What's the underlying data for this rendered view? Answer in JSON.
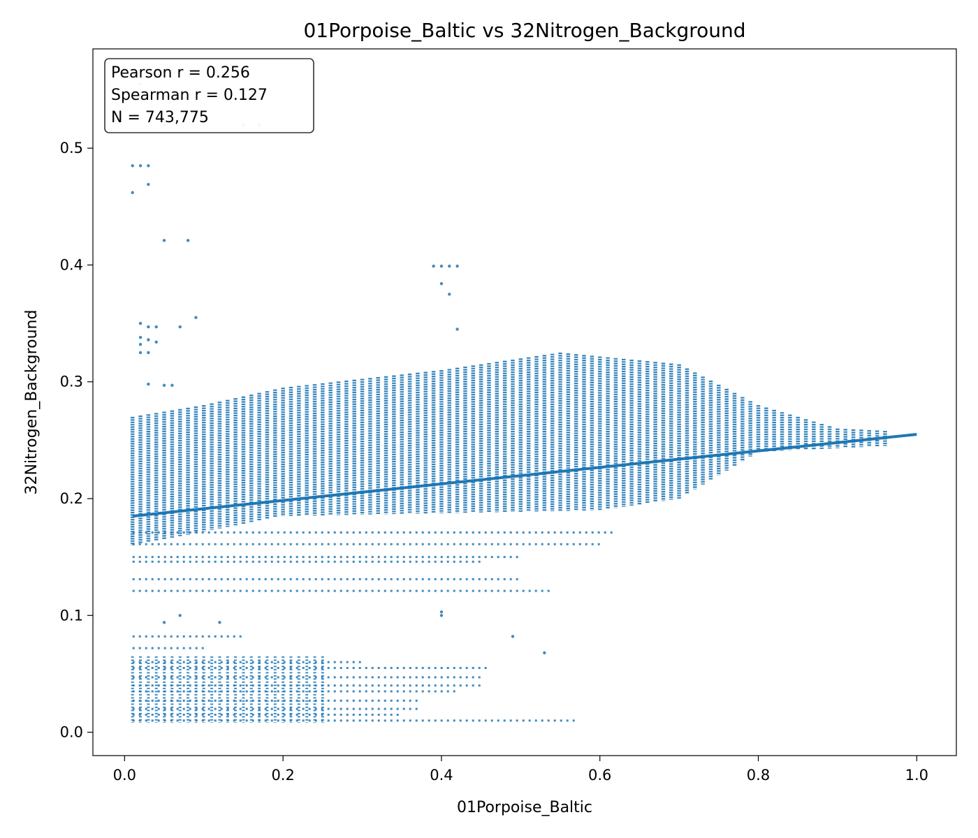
{
  "chart_data": {
    "type": "scatter",
    "title": "01Porpoise_Baltic vs 32Nitrogen_Background",
    "xlabel": "01Porpoise_Baltic",
    "ylabel": "32Nitrogen_Background",
    "xlim": [
      -0.04,
      1.05
    ],
    "ylim": [
      -0.02,
      0.585
    ],
    "x_ticks": [
      0.0,
      0.2,
      0.4,
      0.6,
      0.8,
      1.0
    ],
    "x_tick_labels": [
      "0.0",
      "0.2",
      "0.4",
      "0.6",
      "0.8",
      "1.0"
    ],
    "y_ticks": [
      0.0,
      0.1,
      0.2,
      0.3,
      0.4,
      0.5
    ],
    "y_tick_labels": [
      "0.0",
      "0.1",
      "0.2",
      "0.3",
      "0.4",
      "0.5"
    ],
    "grid": false,
    "point_color": "#1f77b4",
    "stats": {
      "position": "top-left",
      "lines": [
        "Pearson r = 0.256",
        "Spearman r = 0.127",
        "N = 743,775"
      ]
    },
    "regression_line": {
      "x": [
        0.01,
        1.0
      ],
      "y": [
        0.185,
        0.255
      ]
    },
    "dense_band": {
      "x_start": 0.01,
      "x_end": 0.96,
      "x_step": 0.01,
      "upper_envelope": [
        [
          0.01,
          0.27
        ],
        [
          0.1,
          0.28
        ],
        [
          0.2,
          0.295
        ],
        [
          0.4,
          0.31
        ],
        [
          0.55,
          0.325
        ],
        [
          0.7,
          0.315
        ],
        [
          0.8,
          0.28
        ],
        [
          0.9,
          0.26
        ],
        [
          0.96,
          0.258
        ]
      ],
      "lower_envelope": [
        [
          0.01,
          0.16
        ],
        [
          0.2,
          0.185
        ],
        [
          0.6,
          0.19
        ],
        [
          0.7,
          0.2
        ],
        [
          0.8,
          0.24
        ],
        [
          0.96,
          0.245
        ]
      ]
    },
    "outliers": [
      {
        "x": 0.01,
        "y": 0.462
      },
      {
        "x": 0.01,
        "y": 0.485
      },
      {
        "x": 0.02,
        "y": 0.485
      },
      {
        "x": 0.03,
        "y": 0.485
      },
      {
        "x": 0.03,
        "y": 0.469
      },
      {
        "x": 0.05,
        "y": 0.421
      },
      {
        "x": 0.08,
        "y": 0.421
      },
      {
        "x": 0.09,
        "y": 0.355
      },
      {
        "x": 0.02,
        "y": 0.35
      },
      {
        "x": 0.03,
        "y": 0.347
      },
      {
        "x": 0.04,
        "y": 0.347
      },
      {
        "x": 0.07,
        "y": 0.347
      },
      {
        "x": 0.02,
        "y": 0.338
      },
      {
        "x": 0.02,
        "y": 0.332
      },
      {
        "x": 0.03,
        "y": 0.336
      },
      {
        "x": 0.04,
        "y": 0.334
      },
      {
        "x": 0.02,
        "y": 0.325
      },
      {
        "x": 0.03,
        "y": 0.325
      },
      {
        "x": 0.03,
        "y": 0.298
      },
      {
        "x": 0.05,
        "y": 0.297
      },
      {
        "x": 0.06,
        "y": 0.297
      },
      {
        "x": 0.4,
        "y": 0.399
      },
      {
        "x": 0.41,
        "y": 0.399
      },
      {
        "x": 0.42,
        "y": 0.399
      },
      {
        "x": 0.39,
        "y": 0.399
      },
      {
        "x": 0.4,
        "y": 0.384
      },
      {
        "x": 0.41,
        "y": 0.375
      },
      {
        "x": 0.42,
        "y": 0.345
      },
      {
        "x": 0.02,
        "y": 0.555
      },
      {
        "x": 0.03,
        "y": 0.545
      },
      {
        "x": 0.05,
        "y": 0.52
      },
      {
        "x": 0.15,
        "y": 0.52
      },
      {
        "x": 0.17,
        "y": 0.52
      },
      {
        "x": 0.4,
        "y": 0.1
      },
      {
        "x": 0.4,
        "y": 0.103
      },
      {
        "x": 0.49,
        "y": 0.082
      },
      {
        "x": 0.53,
        "y": 0.068
      },
      {
        "x": 0.12,
        "y": 0.094
      },
      {
        "x": 0.05,
        "y": 0.094
      },
      {
        "x": 0.07,
        "y": 0.1
      }
    ],
    "low_clusters": [
      {
        "y": 0.121,
        "x_max": 0.54
      },
      {
        "y": 0.131,
        "x_max": 0.5
      },
      {
        "y": 0.15,
        "x_max": 0.5
      },
      {
        "y": 0.161,
        "x_max": 0.6
      },
      {
        "y": 0.171,
        "x_max": 0.62
      },
      {
        "y": 0.146,
        "x_max": 0.45
      },
      {
        "y": 0.01,
        "x_max": 0.57
      },
      {
        "y": 0.015,
        "x_max": 0.35
      },
      {
        "y": 0.02,
        "x_max": 0.37
      },
      {
        "y": 0.027,
        "x_max": 0.37
      },
      {
        "y": 0.035,
        "x_max": 0.42
      },
      {
        "y": 0.04,
        "x_max": 0.45
      },
      {
        "y": 0.047,
        "x_max": 0.45
      },
      {
        "y": 0.055,
        "x_max": 0.46
      },
      {
        "y": 0.06,
        "x_max": 0.3
      },
      {
        "y": 0.082,
        "x_max": 0.15
      },
      {
        "y": 0.072,
        "x_max": 0.1
      }
    ]
  }
}
